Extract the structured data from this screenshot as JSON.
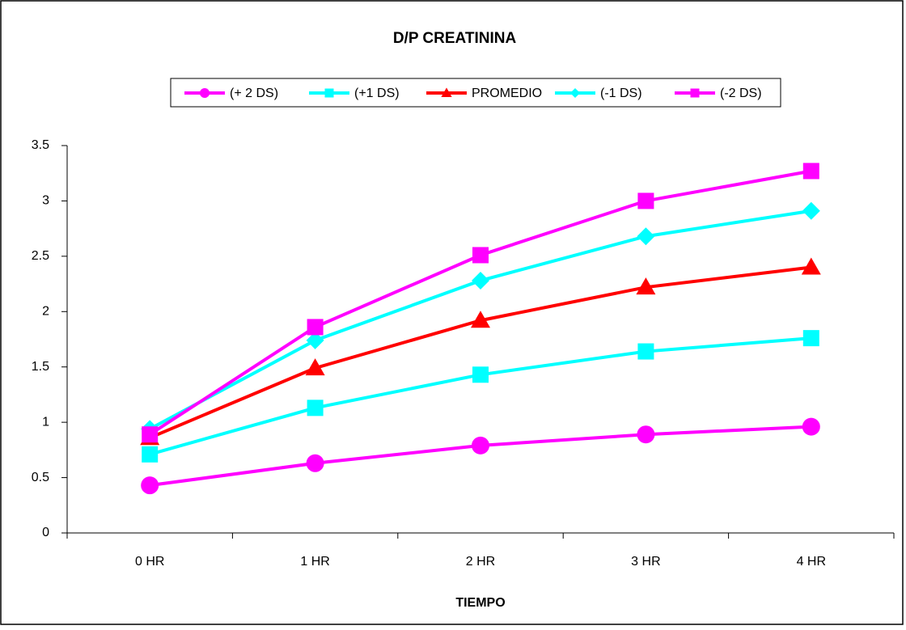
{
  "chart_data": {
    "type": "line",
    "title": "D/P CREATININA",
    "x_label": "TIEMPO",
    "categories": [
      "0 HR",
      "1 HR",
      "2 HR",
      "3 HR",
      "4 HR"
    ],
    "series": [
      {
        "name": "(+ 2 DS)",
        "color": "#ff00ff",
        "marker": "circle",
        "values": [
          0.43,
          0.63,
          0.79,
          0.89,
          0.96
        ]
      },
      {
        "name": "(+1 DS)",
        "color": "#00ffff",
        "marker": "square",
        "values": [
          0.71,
          1.13,
          1.43,
          1.64,
          1.76
        ]
      },
      {
        "name": "PROMEDIO",
        "color": "#ff0000",
        "marker": "triangle",
        "values": [
          0.86,
          1.49,
          1.92,
          2.22,
          2.4
        ]
      },
      {
        "name": "(-1 DS)",
        "color": "#00ffff",
        "marker": "diamond",
        "values": [
          0.94,
          1.74,
          2.28,
          2.68,
          2.91
        ]
      },
      {
        "name": "(-2 DS)",
        "color": "#ff00ff",
        "marker": "square",
        "values": [
          0.89,
          1.86,
          2.51,
          3.0,
          3.27
        ]
      }
    ],
    "ylim": [
      0,
      3.5
    ],
    "yticks": [
      0,
      0.5,
      1,
      1.5,
      2,
      2.5,
      3,
      3.5
    ],
    "legend": "top",
    "grid": false
  }
}
